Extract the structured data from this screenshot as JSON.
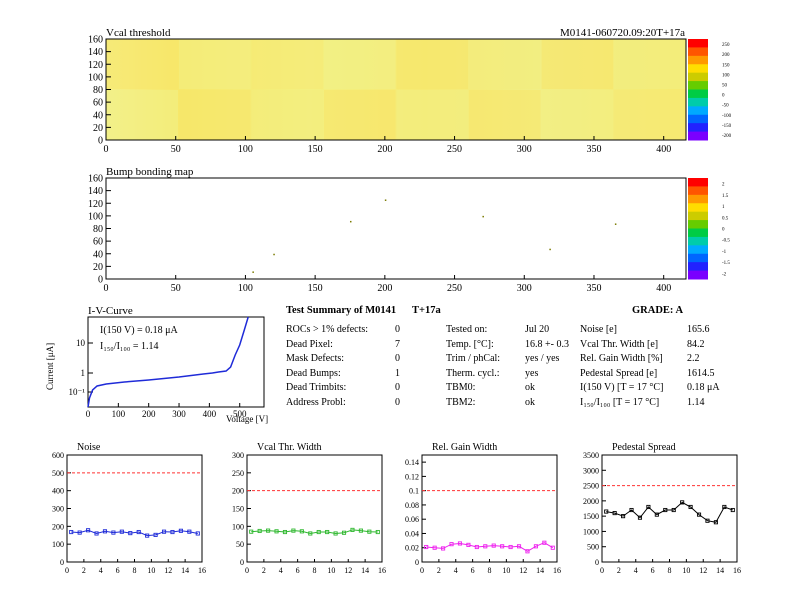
{
  "module_id": "M0141-060720.09:20T+17a",
  "vcal_map": {
    "title": "Vcal threshold",
    "x_ticks": [
      "0",
      "50",
      "100",
      "150",
      "200",
      "250",
      "300",
      "350",
      "400"
    ],
    "y_ticks": [
      "0",
      "20",
      "40",
      "60",
      "80",
      "100",
      "120",
      "140",
      "160"
    ],
    "x_range": [
      0,
      416
    ],
    "y_range": [
      0,
      160
    ],
    "palette_labels": [
      "250",
      "200",
      "150",
      "100",
      "50",
      "0",
      "-50",
      "-100",
      "-150",
      "-200"
    ]
  },
  "bump_map": {
    "title": "Bump bonding map",
    "x_ticks": [
      "0",
      "50",
      "100",
      "150",
      "200",
      "250",
      "300",
      "350",
      "400"
    ],
    "y_ticks": [
      "0",
      "20",
      "40",
      "60",
      "80",
      "100",
      "120",
      "140",
      "160"
    ],
    "x_range": [
      0,
      416
    ],
    "y_range": [
      0,
      160
    ],
    "palette_labels": [
      "2",
      "1.5",
      "1",
      "0.5",
      "0",
      "-0.5",
      "-1",
      "-1.5",
      "-2"
    ]
  },
  "iv_curve": {
    "title": "I-V-Curve",
    "ylabel": "Current [μA]",
    "xlabel": "Voltage [V]",
    "x_ticks": [
      "0",
      "100",
      "200",
      "300",
      "400",
      "500"
    ],
    "y_ticks": [
      "10",
      "1",
      "10⁻¹"
    ],
    "annotation_1": "I(150 V) = 0.18 μA",
    "annotation_2": "I₁₅₀/I₁₀₀ = 1.14"
  },
  "summary": {
    "title": "Test Summary of M0141",
    "tag": "T+17a",
    "grade": "GRADE:  A",
    "col1_labels": [
      "ROCs > 1% defects:",
      "Dead Pixel:",
      "Mask Defects:",
      "Dead Bumps:",
      "Dead Trimbits:",
      "Address Probl:"
    ],
    "col1_values": [
      "0",
      "7",
      "0",
      "1",
      "0",
      "0"
    ],
    "col2_labels": [
      "Tested on:",
      "Temp. [°C]:",
      "Trim / phCal:",
      "Therm. cycl.:",
      "TBM0:",
      "TBM2:"
    ],
    "col2_values": [
      "Jul 20",
      "16.8 +- 0.3",
      "yes / yes",
      "yes",
      "ok",
      "ok"
    ],
    "col3_labels": [
      "Noise [e]",
      "Vcal Thr. Width [e]",
      "Rel. Gain Width [%]",
      "Pedestal Spread [e]",
      "I(150 V) [T = 17 °C]",
      "I₁₅₀/I₁₀₀   [T = 17 °C]"
    ],
    "col3_values": [
      "165.6",
      "84.2",
      "2.2",
      "1614.5",
      "0.18 μA",
      "1.14"
    ]
  },
  "chart_data": [
    {
      "type": "line",
      "title": "Noise",
      "x": [
        0,
        1,
        2,
        3,
        4,
        5,
        6,
        7,
        8,
        9,
        10,
        11,
        12,
        13,
        14,
        15
      ],
      "series": [
        {
          "values": [
            168,
            165,
            178,
            160,
            172,
            165,
            170,
            162,
            168,
            148,
            152,
            170,
            168,
            175,
            170,
            160
          ]
        }
      ],
      "xlim": [
        0,
        16
      ],
      "ylim": [
        0,
        600
      ],
      "x_ticks": [
        "0",
        "2",
        "4",
        "6",
        "8",
        "10",
        "12",
        "14",
        "16"
      ],
      "y_ticks": [
        "0",
        "100",
        "200",
        "300",
        "400",
        "500",
        "600"
      ],
      "threshold": 500,
      "color": "#1f2bd8"
    },
    {
      "type": "line",
      "title": "Vcal Thr. Width",
      "x": [
        0,
        1,
        2,
        3,
        4,
        5,
        6,
        7,
        8,
        9,
        10,
        11,
        12,
        13,
        14,
        15
      ],
      "series": [
        {
          "values": [
            85,
            87,
            88,
            86,
            84,
            88,
            86,
            80,
            84,
            84,
            80,
            82,
            90,
            88,
            85,
            84
          ]
        }
      ],
      "xlim": [
        0,
        16
      ],
      "ylim": [
        0,
        300
      ],
      "x_ticks": [
        "0",
        "2",
        "4",
        "6",
        "8",
        "10",
        "12",
        "14",
        "16"
      ],
      "y_ticks": [
        "0",
        "50",
        "100",
        "150",
        "200",
        "250",
        "300"
      ],
      "threshold": 200,
      "color": "#2fb82f"
    },
    {
      "type": "line",
      "title": "Rel. Gain Width",
      "x": [
        0,
        1,
        2,
        3,
        4,
        5,
        6,
        7,
        8,
        9,
        10,
        11,
        12,
        13,
        14,
        15
      ],
      "series": [
        {
          "values": [
            0.021,
            0.02,
            0.019,
            0.025,
            0.026,
            0.024,
            0.021,
            0.022,
            0.023,
            0.022,
            0.021,
            0.022,
            0.015,
            0.022,
            0.027,
            0.02
          ]
        }
      ],
      "xlim": [
        0,
        16
      ],
      "ylim": [
        0,
        0.15
      ],
      "x_ticks": [
        "0",
        "2",
        "4",
        "6",
        "8",
        "10",
        "12",
        "14",
        "16"
      ],
      "y_ticks": [
        "0",
        "0.02",
        "0.04",
        "0.06",
        "0.08",
        "0.1",
        "0.12",
        "0.14"
      ],
      "threshold": 0.1,
      "color": "#ee22ee"
    },
    {
      "type": "line",
      "title": "Pedestal Spread",
      "x": [
        0,
        1,
        2,
        3,
        4,
        5,
        6,
        7,
        8,
        9,
        10,
        11,
        12,
        13,
        14,
        15
      ],
      "series": [
        {
          "values": [
            1650,
            1600,
            1500,
            1700,
            1450,
            1800,
            1550,
            1700,
            1700,
            1950,
            1800,
            1550,
            1350,
            1300,
            1800,
            1700
          ]
        }
      ],
      "xlim": [
        0,
        16
      ],
      "ylim": [
        0,
        3500
      ],
      "x_ticks": [
        "0",
        "2",
        "4",
        "6",
        "8",
        "10",
        "12",
        "14",
        "16"
      ],
      "y_ticks": [
        "0",
        "500",
        "1000",
        "1500",
        "2000",
        "2500",
        "3000",
        "3500"
      ],
      "threshold": 2500,
      "color": "#000000"
    }
  ]
}
